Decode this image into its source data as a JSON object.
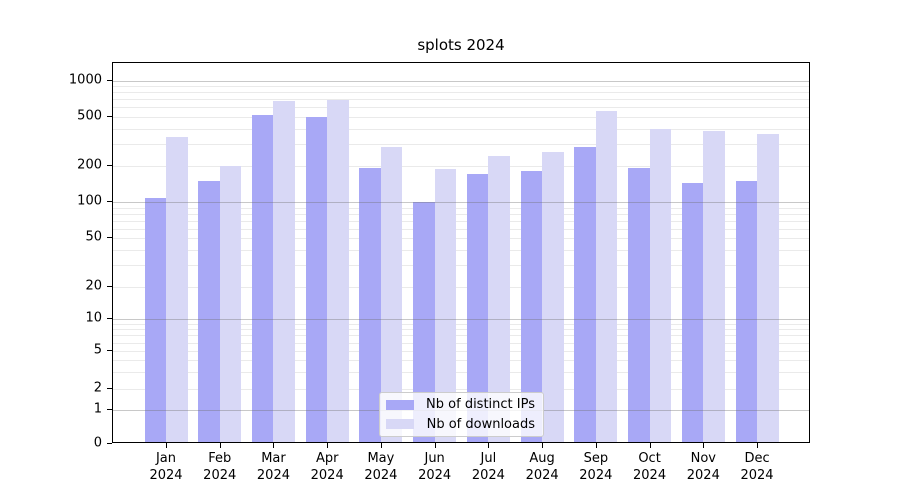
{
  "chart_data": {
    "type": "bar",
    "title": "splots 2024",
    "categories": [
      "Jan\n2024",
      "Feb\n2024",
      "Mar\n2024",
      "Apr\n2024",
      "May\n2024",
      "Jun\n2024",
      "Jul\n2024",
      "Aug\n2024",
      "Sep\n2024",
      "Oct\n2024",
      "Nov\n2024",
      "Dec\n2024"
    ],
    "series": [
      {
        "name": "Nb of distinct IPs",
        "color": "#a8a8f6",
        "values": [
          104,
          145,
          500,
          482,
          185,
          97,
          164,
          174,
          273,
          185,
          140,
          145
        ]
      },
      {
        "name": "Nb of downloads",
        "color": "#d8d8f6",
        "values": [
          330,
          193,
          655,
          668,
          272,
          180,
          234,
          250,
          540,
          386,
          368,
          350
        ]
      }
    ],
    "xlabel": "",
    "ylabel": "",
    "yscale": "symlog",
    "yticks": [
      0,
      1,
      2,
      5,
      10,
      20,
      50,
      100,
      200,
      500,
      1000
    ],
    "ylim": [
      0,
      1400
    ],
    "grid": true,
    "legend_position": "lower center"
  }
}
